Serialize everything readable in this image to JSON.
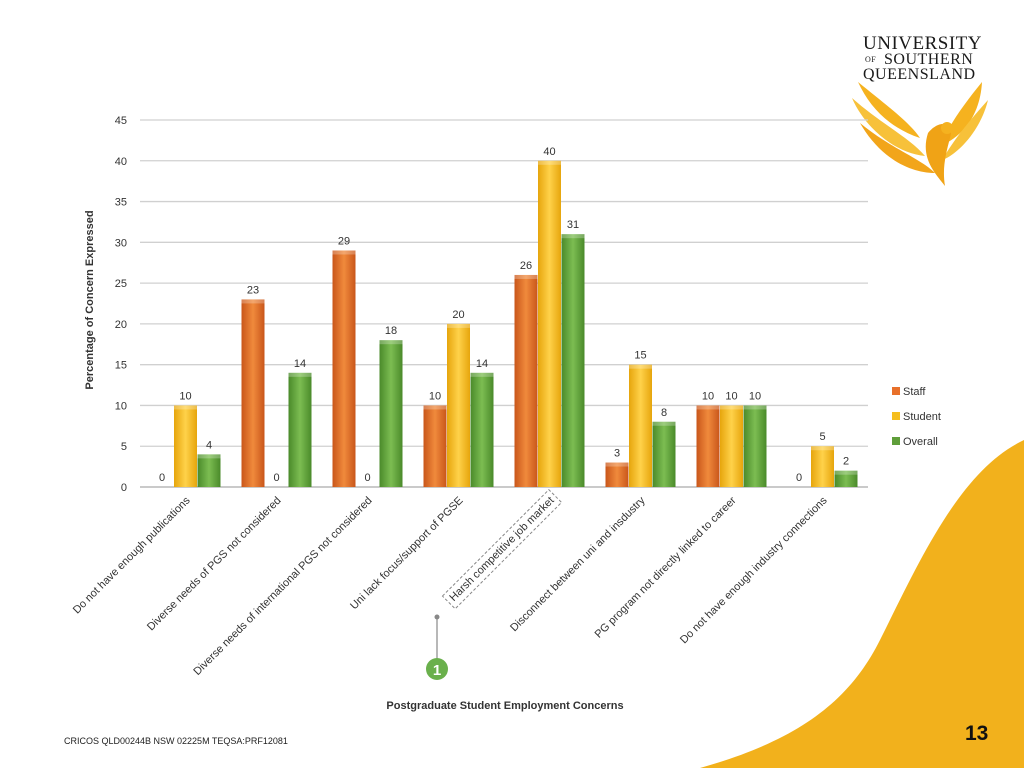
{
  "brand": {
    "line1": "UNIVERSITY",
    "line2_prefix": "OF",
    "line2": "SOUTHERN",
    "line3": "QUEENSLAND",
    "accent_color": "#f2b11c"
  },
  "footer": {
    "cricos": "CRICOS QLD00244B NSW 02225M TEQSA:PRF12081"
  },
  "page_number": "13",
  "annotation": {
    "marker": "1"
  },
  "colors": {
    "staff": "#e8702a",
    "student": "#f5be1e",
    "overall": "#5f9e3a"
  },
  "chart_data": {
    "type": "bar",
    "title": "",
    "xlabel": "Postgraduate Student Employment Concerns",
    "ylabel": "Percentage of Concern Expressed",
    "ylim": [
      0,
      45
    ],
    "yticks": [
      0,
      5,
      10,
      15,
      20,
      25,
      30,
      35,
      40,
      45
    ],
    "grid": true,
    "legend_position": "right",
    "categories": [
      "Do not have enough publications",
      "Diverse needs of PGS not considered",
      "Diverse needs of international PGS not considered",
      "Uni lack focus/support of PGSE",
      "Harsh competitive job market",
      "Disconnect between uni and insdustry",
      "PG program not directly linked to career",
      "Do not have enough industry connections"
    ],
    "highlighted_category": 4,
    "series": [
      {
        "name": "Staff",
        "values": [
          0,
          23,
          29,
          10,
          26,
          3,
          10,
          0
        ]
      },
      {
        "name": "Student",
        "values": [
          10,
          0,
          0,
          20,
          40,
          15,
          10,
          5
        ]
      },
      {
        "name": "Overall",
        "values": [
          4,
          14,
          18,
          14,
          31,
          8,
          10,
          2
        ]
      }
    ]
  }
}
